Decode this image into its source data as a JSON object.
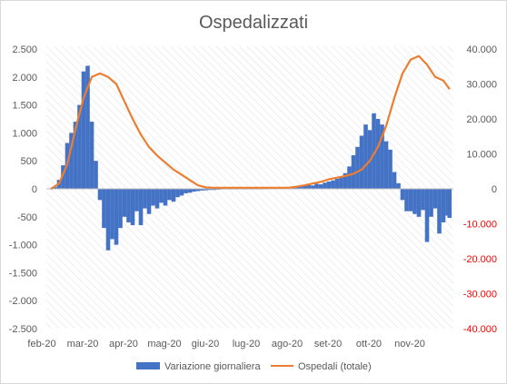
{
  "colors": {
    "bars": "#4472C4",
    "line": "#ED7D31",
    "right_axis_negative": "#FF0000",
    "right_axis_positive": "#595959",
    "text": "#595959",
    "hatch": "#d9d9d9"
  },
  "chart_data": {
    "type": "bar",
    "title": "Ospedalizzati",
    "background": "diagonal hatch",
    "grid": false,
    "legend_position": "bottom",
    "x_tick_labels": [
      "feb-20",
      "mar-20",
      "apr-20",
      "mag-20",
      "giu-20",
      "lug-20",
      "ago-20",
      "set-20",
      "ott-20",
      "nov-20"
    ],
    "y_left": {
      "range": [
        -2500,
        2500
      ],
      "ticks": [
        2500,
        2000,
        1500,
        1000,
        500,
        0,
        -500,
        -1000,
        -1500,
        -2000,
        -2500
      ],
      "tick_labels": [
        "2.500",
        "2.000",
        "1.500",
        "1.000",
        "500",
        "0",
        "-500",
        "-1.000",
        "-1.500",
        "-2.000",
        "-2.500"
      ]
    },
    "y_right": {
      "range": [
        -40000,
        40000
      ],
      "ticks": [
        40000,
        30000,
        20000,
        10000,
        0,
        -10000,
        -20000,
        -30000,
        -40000
      ],
      "tick_labels": [
        "40.000",
        "30.000",
        "20.000",
        "10.000",
        "0",
        "-10.000",
        "-20.000",
        "-30.000",
        "-40.000"
      ]
    },
    "series": [
      {
        "name": "Variazione giornaliera",
        "type": "bar",
        "axis": "left",
        "x_month_index": [
          0.0,
          0.1,
          0.2,
          0.3,
          0.4,
          0.5,
          0.6,
          0.7,
          0.8,
          0.9,
          1.0,
          1.1,
          1.2,
          1.3,
          1.4,
          1.5,
          1.6,
          1.7,
          1.8,
          1.9,
          2.0,
          2.1,
          2.2,
          2.3,
          2.4,
          2.5,
          2.6,
          2.7,
          2.8,
          2.9,
          3.0,
          3.1,
          3.2,
          3.3,
          3.4,
          3.5,
          3.6,
          3.7,
          3.8,
          3.9,
          4.0,
          4.1,
          4.2,
          4.3,
          4.4,
          4.5,
          4.6,
          4.7,
          4.8,
          4.9,
          5.0,
          5.1,
          5.2,
          5.3,
          5.4,
          5.5,
          5.6,
          5.7,
          5.8,
          5.9,
          6.0,
          6.1,
          6.2,
          6.3,
          6.4,
          6.5,
          6.6,
          6.7,
          6.8,
          6.9,
          7.0,
          7.1,
          7.2,
          7.3,
          7.4,
          7.5,
          7.6,
          7.7,
          7.8,
          7.9,
          8.0,
          8.1,
          8.2,
          8.3,
          8.4,
          8.5,
          8.6,
          8.7,
          8.8,
          8.9,
          9.0,
          9.1,
          9.2,
          9.3,
          9.4,
          9.5,
          9.6,
          9.7,
          9.75
        ],
        "values": [
          0,
          30,
          160,
          420,
          820,
          1000,
          1200,
          1500,
          2100,
          2200,
          1200,
          500,
          -200,
          -700,
          -1100,
          -900,
          -1000,
          -700,
          -500,
          -600,
          -650,
          -400,
          -650,
          -350,
          -450,
          -300,
          -350,
          -250,
          -300,
          -200,
          -230,
          -150,
          -120,
          -80,
          -70,
          -50,
          -40,
          -30,
          -25,
          -20,
          -20,
          -15,
          -10,
          -10,
          -10,
          -8,
          -5,
          -5,
          -5,
          -5,
          -5,
          -5,
          0,
          5,
          10,
          15,
          20,
          25,
          25,
          35,
          40,
          40,
          60,
          70,
          60,
          90,
          80,
          110,
          130,
          150,
          180,
          220,
          280,
          400,
          600,
          750,
          950,
          1150,
          1050,
          1350,
          1250,
          1150,
          850,
          700,
          300,
          100,
          -200,
          -400,
          -400,
          -450,
          -500,
          -380,
          -950,
          -500,
          -350,
          -800,
          -600,
          -480,
          -520
        ]
      },
      {
        "name": "Ospedali (totale)",
        "type": "line",
        "axis": "right",
        "x_month_index": [
          0.0,
          0.2,
          0.4,
          0.6,
          0.8,
          1.0,
          1.2,
          1.4,
          1.6,
          1.8,
          2.0,
          2.2,
          2.4,
          2.6,
          2.8,
          3.0,
          3.2,
          3.4,
          3.6,
          3.8,
          4.0,
          4.2,
          4.4,
          4.6,
          4.8,
          5.0,
          5.2,
          5.4,
          5.6,
          5.8,
          6.0,
          6.2,
          6.4,
          6.6,
          6.8,
          7.0,
          7.2,
          7.4,
          7.6,
          7.8,
          8.0,
          8.2,
          8.4,
          8.6,
          8.8,
          9.0,
          9.2,
          9.4,
          9.6,
          9.75
        ],
        "values": [
          0,
          1500,
          7000,
          17000,
          26000,
          32000,
          33000,
          32000,
          30000,
          25000,
          20000,
          15500,
          12000,
          9500,
          7500,
          5500,
          4000,
          2500,
          1000,
          400,
          300,
          300,
          300,
          300,
          300,
          300,
          300,
          300,
          300,
          300,
          600,
          1000,
          1500,
          2000,
          2700,
          3200,
          3700,
          4300,
          5500,
          8000,
          12000,
          18000,
          26000,
          33000,
          37000,
          38000,
          35500,
          32000,
          31000,
          28500
        ]
      }
    ]
  }
}
